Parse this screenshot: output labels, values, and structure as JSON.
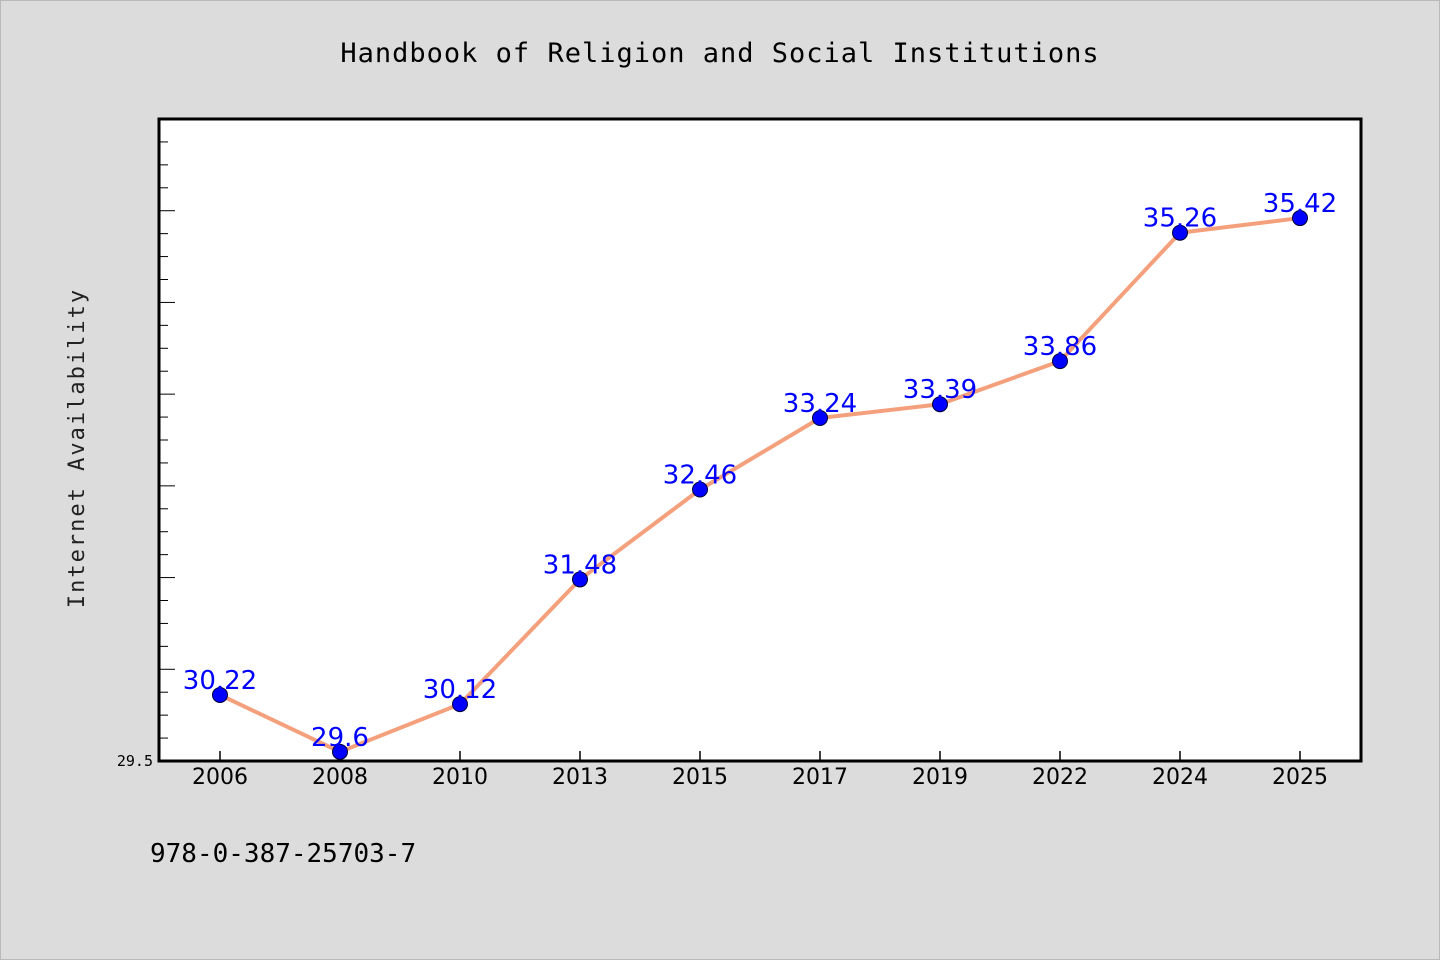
{
  "page": {
    "background": "#dcdcdc",
    "footer_text": "978-0-387-25703-7"
  },
  "chart_data": {
    "type": "line",
    "title": "Handbook of Religion and Social Institutions",
    "xlabel": "",
    "ylabel": "Internet Availability",
    "categories": [
      "2006",
      "2008",
      "2010",
      "2013",
      "2015",
      "2017",
      "2019",
      "2022",
      "2024",
      "2025"
    ],
    "series": [
      {
        "values": [
          30.22,
          29.6,
          30.12,
          31.48,
          32.46,
          33.24,
          33.39,
          33.86,
          35.26,
          35.42
        ],
        "data_labels": [
          "30.22",
          "29.6",
          "30.12",
          "31.48",
          "32.46",
          "33.24",
          "33.39",
          "33.86",
          "35.26",
          "35.42"
        ],
        "line_color": "#f4a07c",
        "marker_color": "#0000ff"
      }
    ],
    "ylim": [
      29.5,
      36.5
    ],
    "y_tick_labels": [
      "29.5"
    ],
    "grid": false,
    "legend": "none",
    "colors": {
      "plot_background": "#ffffff",
      "axis": "#000000",
      "data_label": "#0000ff"
    }
  }
}
